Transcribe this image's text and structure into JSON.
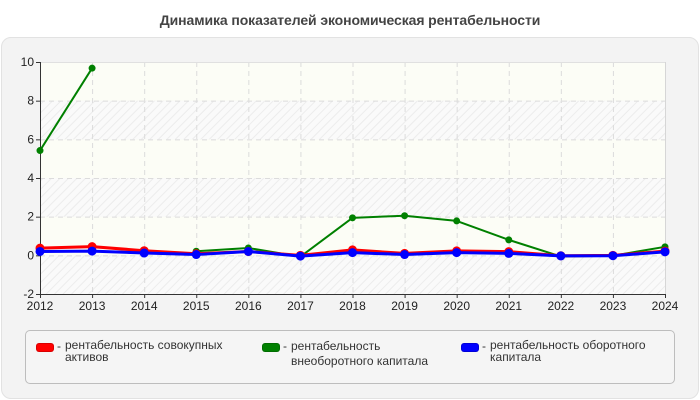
{
  "title": "Динамика показателей экономическая рентабельности",
  "legend": [
    {
      "label_line1": "рентабельность совокупных",
      "label_line2": "активов",
      "color": "#ff0000"
    },
    {
      "label_line1": "рентабельность",
      "label_line2": "внеоборотного капитала",
      "color": "#008000"
    },
    {
      "label_line1": "рентабельность оборотного",
      "label_line2": "капитала",
      "color": "#0000ff"
    }
  ],
  "chart_data": {
    "type": "line",
    "title": "Динамика показателей экономическая рентабельности",
    "xlabel": "",
    "ylabel": "",
    "ylim": [
      -2,
      10
    ],
    "yticks": [
      -2,
      0,
      2,
      4,
      6,
      8,
      10
    ],
    "grid": true,
    "legend_position": "bottom",
    "categories": [
      "2012",
      "2013",
      "2014",
      "2015",
      "2016",
      "2017",
      "2018",
      "2019",
      "2020",
      "2021",
      "2022",
      "2023",
      "2024"
    ],
    "series": [
      {
        "name": "рентабельность совокупных активов",
        "color": "#ff0000",
        "values": [
          0.37,
          0.45,
          0.24,
          0.08,
          0.2,
          0.0,
          0.28,
          0.1,
          0.23,
          0.19,
          -0.02,
          0.0,
          0.22
        ]
      },
      {
        "name": "рентабельность внеоборотного капитала",
        "color": "#008000",
        "values": [
          5.42,
          9.68,
          null,
          0.21,
          0.38,
          -0.07,
          1.94,
          2.05,
          1.78,
          0.8,
          -0.06,
          -0.02,
          0.44
        ]
      },
      {
        "name": "рентабельность оборотного капитала",
        "color": "#0000ff",
        "values": [
          0.2,
          0.22,
          0.12,
          0.04,
          0.2,
          -0.04,
          0.14,
          0.04,
          0.14,
          0.1,
          -0.03,
          -0.02,
          0.18
        ]
      }
    ]
  }
}
